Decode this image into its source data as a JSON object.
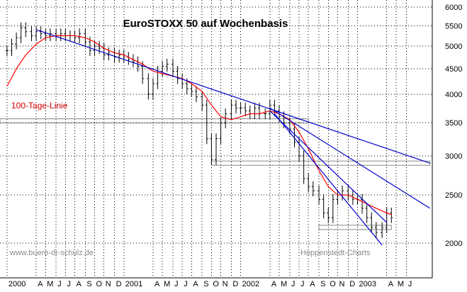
{
  "chart_data": {
    "type": "ohlc",
    "title": "EuroSTOXX 50 auf Wochenbasis",
    "moving_average_label": "100-Tage-Linie",
    "watermark_left": "www.buero-dr-schulz.de",
    "watermark_right": "Hoppenstedt-Charts",
    "y_scale": "log",
    "ylim": [
      1700,
      6200
    ],
    "y_ticks": [
      2000,
      2500,
      3000,
      3500,
      4000,
      4500,
      5000,
      5500,
      6000
    ],
    "x_range": [
      1999.9,
      2003.6
    ],
    "grid": true,
    "x_ticks": [
      {
        "t": 1999.96,
        "label": "2000"
      },
      {
        "t": 2000.21,
        "label": "A"
      },
      {
        "t": 2000.29,
        "label": "M"
      },
      {
        "t": 2000.38,
        "label": "J"
      },
      {
        "t": 2000.46,
        "label": "J"
      },
      {
        "t": 2000.54,
        "label": "A"
      },
      {
        "t": 2000.63,
        "label": "S"
      },
      {
        "t": 2000.71,
        "label": "O"
      },
      {
        "t": 2000.79,
        "label": "N"
      },
      {
        "t": 2000.88,
        "label": "D"
      },
      {
        "t": 2000.96,
        "label": "2001"
      },
      {
        "t": 2001.21,
        "label": "A"
      },
      {
        "t": 2001.29,
        "label": "M"
      },
      {
        "t": 2001.38,
        "label": "J"
      },
      {
        "t": 2001.46,
        "label": "J"
      },
      {
        "t": 2001.54,
        "label": "A"
      },
      {
        "t": 2001.63,
        "label": "S"
      },
      {
        "t": 2001.71,
        "label": "O"
      },
      {
        "t": 2001.79,
        "label": "N"
      },
      {
        "t": 2001.88,
        "label": "D"
      },
      {
        "t": 1001.96,
        "label": ""
      },
      {
        "t": 2001.96,
        "label": "2002"
      },
      {
        "t": 2002.21,
        "label": "A"
      },
      {
        "t": 2002.29,
        "label": "M"
      },
      {
        "t": 2002.38,
        "label": "J"
      },
      {
        "t": 2002.46,
        "label": "J"
      },
      {
        "t": 2002.54,
        "label": "A"
      },
      {
        "t": 2002.63,
        "label": "S"
      },
      {
        "t": 2002.71,
        "label": "O"
      },
      {
        "t": 2002.79,
        "label": "N"
      },
      {
        "t": 2002.88,
        "label": "D"
      },
      {
        "t": 2002.96,
        "label": "2003"
      },
      {
        "t": 2003.21,
        "label": "A"
      },
      {
        "t": 2003.29,
        "label": "M"
      },
      {
        "t": 2003.38,
        "label": "J"
      }
    ],
    "series": [
      {
        "values": [
          [
            1999.96,
            4900
          ],
          [
            2000.0,
            5050
          ],
          [
            2000.04,
            5200
          ],
          [
            2000.08,
            5450
          ],
          [
            2000.12,
            5350
          ],
          [
            2000.17,
            5250
          ],
          [
            2000.21,
            5350
          ],
          [
            2000.25,
            5300
          ],
          [
            2000.29,
            5250
          ],
          [
            2000.33,
            5300
          ],
          [
            2000.38,
            5250
          ],
          [
            2000.42,
            5300
          ],
          [
            2000.46,
            5250
          ],
          [
            2000.5,
            5250
          ],
          [
            2000.54,
            5200
          ],
          [
            2000.58,
            5300
          ],
          [
            2000.63,
            5100
          ],
          [
            2000.67,
            4900
          ],
          [
            2000.71,
            5000
          ],
          [
            2000.75,
            4950
          ],
          [
            2000.79,
            4800
          ],
          [
            2000.83,
            4850
          ],
          [
            2000.88,
            4750
          ],
          [
            2000.92,
            4800
          ],
          [
            2000.96,
            4750
          ],
          [
            2001.0,
            4700
          ],
          [
            2001.04,
            4650
          ],
          [
            2001.08,
            4550
          ],
          [
            2001.12,
            4300
          ],
          [
            2001.17,
            4000
          ],
          [
            2001.21,
            4200
          ],
          [
            2001.25,
            4450
          ],
          [
            2001.29,
            4550
          ],
          [
            2001.33,
            4600
          ],
          [
            2001.38,
            4450
          ],
          [
            2001.42,
            4300
          ],
          [
            2001.46,
            4200
          ],
          [
            2001.5,
            4100
          ],
          [
            2001.54,
            4050
          ],
          [
            2001.58,
            3950
          ],
          [
            2001.63,
            3800
          ],
          [
            2001.67,
            3250
          ],
          [
            2001.71,
            2950
          ],
          [
            2001.75,
            3250
          ],
          [
            2001.79,
            3500
          ],
          [
            2001.83,
            3650
          ],
          [
            2001.88,
            3800
          ],
          [
            2001.92,
            3750
          ],
          [
            2001.96,
            3750
          ],
          [
            2002.0,
            3700
          ],
          [
            2002.04,
            3650
          ],
          [
            2002.08,
            3750
          ],
          [
            2002.12,
            3650
          ],
          [
            2002.17,
            3650
          ],
          [
            2002.21,
            3800
          ],
          [
            2002.25,
            3700
          ],
          [
            2002.29,
            3600
          ],
          [
            2002.33,
            3500
          ],
          [
            2002.38,
            3400
          ],
          [
            2002.42,
            3200
          ],
          [
            2002.46,
            3000
          ],
          [
            2002.5,
            2700
          ],
          [
            2002.54,
            2600
          ],
          [
            2002.58,
            2550
          ],
          [
            2002.63,
            2450
          ],
          [
            2002.67,
            2300
          ],
          [
            2002.71,
            2250
          ],
          [
            2002.75,
            2450
          ],
          [
            2002.79,
            2500
          ],
          [
            2002.83,
            2550
          ],
          [
            2002.88,
            2500
          ],
          [
            2002.92,
            2450
          ],
          [
            2002.96,
            2450
          ],
          [
            2003.0,
            2350
          ],
          [
            2003.04,
            2250
          ],
          [
            2003.08,
            2150
          ],
          [
            2003.12,
            2100
          ],
          [
            2003.17,
            2150
          ],
          [
            2003.21,
            2300
          ],
          [
            2003.25,
            2250
          ]
        ]
      },
      {
        "name": "100-Tage-Linie",
        "values": [
          [
            1999.96,
            4150
          ],
          [
            2000.04,
            4500
          ],
          [
            2000.12,
            4800
          ],
          [
            2000.21,
            5050
          ],
          [
            2000.29,
            5200
          ],
          [
            2000.38,
            5250
          ],
          [
            2000.46,
            5250
          ],
          [
            2000.54,
            5250
          ],
          [
            2000.63,
            5200
          ],
          [
            2000.71,
            5100
          ],
          [
            2000.79,
            4950
          ],
          [
            2000.88,
            4850
          ],
          [
            2000.96,
            4800
          ],
          [
            2001.04,
            4700
          ],
          [
            2001.12,
            4600
          ],
          [
            2001.21,
            4450
          ],
          [
            2001.29,
            4400
          ],
          [
            2001.38,
            4350
          ],
          [
            2001.46,
            4300
          ],
          [
            2001.54,
            4200
          ],
          [
            2001.63,
            4050
          ],
          [
            2001.71,
            3800
          ],
          [
            2001.79,
            3600
          ],
          [
            2001.88,
            3550
          ],
          [
            2001.96,
            3600
          ],
          [
            2002.04,
            3650
          ],
          [
            2002.12,
            3650
          ],
          [
            2002.21,
            3700
          ],
          [
            2002.29,
            3650
          ],
          [
            2002.38,
            3550
          ],
          [
            2002.46,
            3350
          ],
          [
            2002.54,
            3100
          ],
          [
            2002.63,
            2800
          ],
          [
            2002.71,
            2600
          ],
          [
            2002.79,
            2500
          ],
          [
            2002.88,
            2500
          ],
          [
            2002.96,
            2450
          ],
          [
            2003.04,
            2400
          ],
          [
            2003.12,
            2350
          ],
          [
            2003.21,
            2300
          ],
          [
            2003.25,
            2280
          ]
        ]
      }
    ],
    "trend_lines": [
      {
        "from": [
          2000.21,
          5400
        ],
        "to": [
          2003.58,
          2900
        ]
      },
      {
        "from": [
          2002.21,
          3700
        ],
        "to": [
          2003.21,
          2200
        ]
      },
      {
        "from": [
          2002.25,
          3650
        ],
        "to": [
          2003.17,
          1980
        ]
      },
      {
        "from": [
          2002.21,
          3750
        ],
        "to": [
          2003.58,
          2350
        ]
      }
    ],
    "support_bands": [
      {
        "from": [
          1999.9,
          3530
        ],
        "to": [
          2002.54,
          3530
        ]
      },
      {
        "from": [
          2001.71,
          2900
        ],
        "to": [
          2003.58,
          2900
        ]
      },
      {
        "from": [
          2002.63,
          2150
        ],
        "to": [
          2003.25,
          2150
        ]
      }
    ],
    "colors": {
      "price": "#000000",
      "ma": "#ff0000",
      "trend": "#0000cc",
      "band": "#888888",
      "grid": "#000000",
      "label_ma": "#cc0000",
      "watermark": "#8a8a8a"
    }
  }
}
